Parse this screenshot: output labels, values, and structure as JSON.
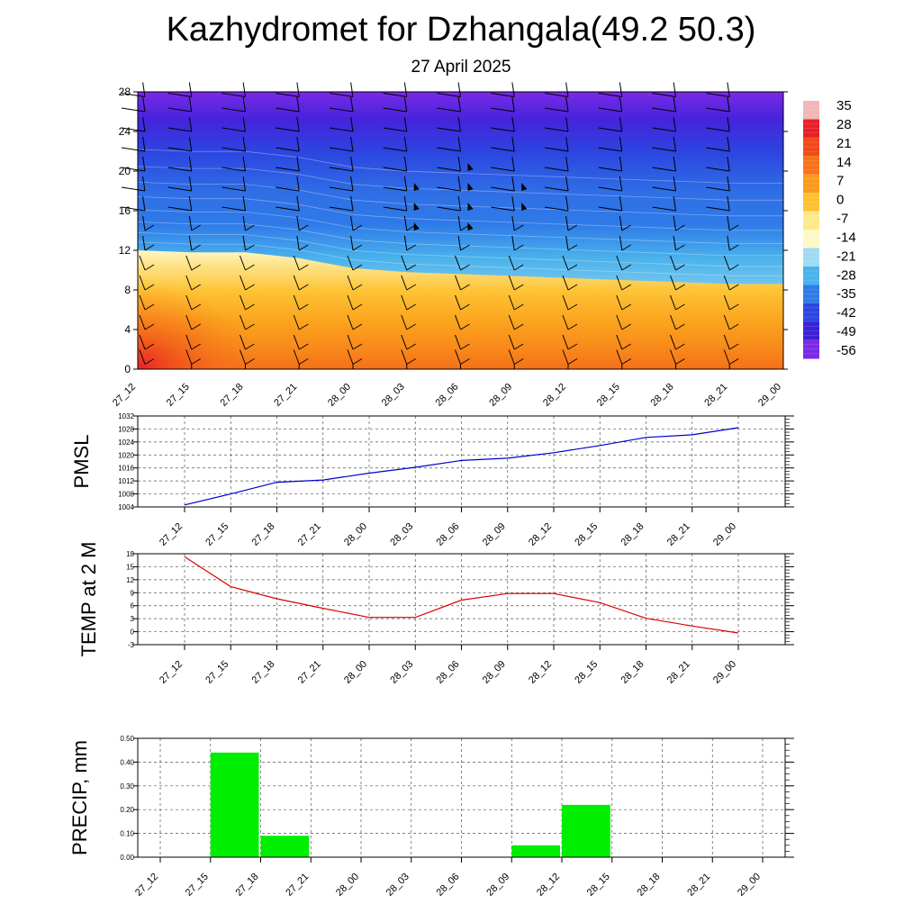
{
  "header": {
    "title": "Kazhydromet for Dzhangala(49.2 50.3)",
    "date": "27 April 2025"
  },
  "chart_data": [
    {
      "type": "heatmap",
      "description_x": "time steps",
      "x_tick_labels": [
        "27_12",
        "27_15",
        "27_18",
        "27_21",
        "28_00",
        "28_03",
        "28_06",
        "28_09",
        "28_12",
        "28_15",
        "28_18",
        "28_21",
        "29_00"
      ],
      "ylim": [
        0,
        28
      ],
      "y_ticks": [
        0,
        4,
        8,
        12,
        16,
        20,
        24,
        28
      ],
      "zero_isotherm_level": [
        12,
        11.8,
        11.8,
        11.2,
        10.2,
        9.8,
        9.6,
        9.4,
        9.2,
        9.0,
        8.8,
        8.6,
        8.6
      ],
      "colorbar_labels": [
        "35",
        "28",
        "21",
        "14",
        "7",
        "0",
        "-7",
        "-14",
        "-21",
        "-28",
        "-35",
        "-42",
        "-49",
        "-56"
      ],
      "colorbar_colors": [
        "#f2b6b8",
        "#e8202a",
        "#f04a1a",
        "#f8721a",
        "#fb9a1c",
        "#fdc233",
        "#fee98a",
        "#fef7c8",
        "#9fdcf2",
        "#4ab2ec",
        "#2f7be8",
        "#2c46e0",
        "#3a20d8",
        "#7a2ae6"
      ],
      "wind_barbs": "present",
      "grid": false
    },
    {
      "type": "line",
      "ylabel": "PMSL",
      "categories": [
        "27_12",
        "27_15",
        "27_18",
        "27_21",
        "28_00",
        "28_03",
        "28_06",
        "28_09",
        "28_12",
        "28_15",
        "28_18",
        "28_21",
        "29_00"
      ],
      "series": [
        {
          "color": "#0000cc",
          "values": [
            1004.6,
            1008.0,
            1011.6,
            1012.3,
            1014.4,
            1016.2,
            1018.3,
            1019.0,
            1020.7,
            1022.9,
            1025.4,
            1026.2,
            1028.4
          ]
        }
      ],
      "ylim": [
        1004,
        1032
      ],
      "y_ticks": [
        "1004",
        "1008",
        "1012",
        "1016",
        "1020",
        "1024",
        "1028",
        "1032"
      ],
      "grid": true
    },
    {
      "type": "line",
      "ylabel": "TEMP at 2 M",
      "categories": [
        "27_12",
        "27_15",
        "27_18",
        "27_21",
        "28_00",
        "28_03",
        "28_06",
        "28_09",
        "28_12",
        "28_15",
        "28_18",
        "28_21",
        "29_00"
      ],
      "series": [
        {
          "color": "#dd0000",
          "values": [
            17.3,
            10.4,
            7.6,
            5.4,
            3.3,
            3.3,
            7.3,
            8.8,
            8.8,
            6.7,
            3.1,
            1.3,
            -0.3
          ]
        }
      ],
      "ylim": [
        -3,
        18
      ],
      "y_ticks": [
        "-3",
        "0",
        "3",
        "6",
        "9",
        "12",
        "15",
        "18"
      ],
      "grid": true
    },
    {
      "type": "bar",
      "ylabel": "PRECIP, mm",
      "categories": [
        "27_12",
        "27_15",
        "27_18",
        "27_21",
        "28_00",
        "28_03",
        "28_06",
        "28_09",
        "28_12",
        "28_15",
        "28_18",
        "28_21",
        "29_00"
      ],
      "values": [
        0,
        0.44,
        0.09,
        0,
        0,
        0,
        0,
        0.05,
        0.22,
        0,
        0,
        0,
        0
      ],
      "bar_color": "#00ee00",
      "ylim": [
        0,
        0.5
      ],
      "y_ticks": [
        "0.00",
        "0.10",
        "0.20",
        "0.30",
        "0.40",
        "0.50"
      ],
      "grid": true
    }
  ]
}
